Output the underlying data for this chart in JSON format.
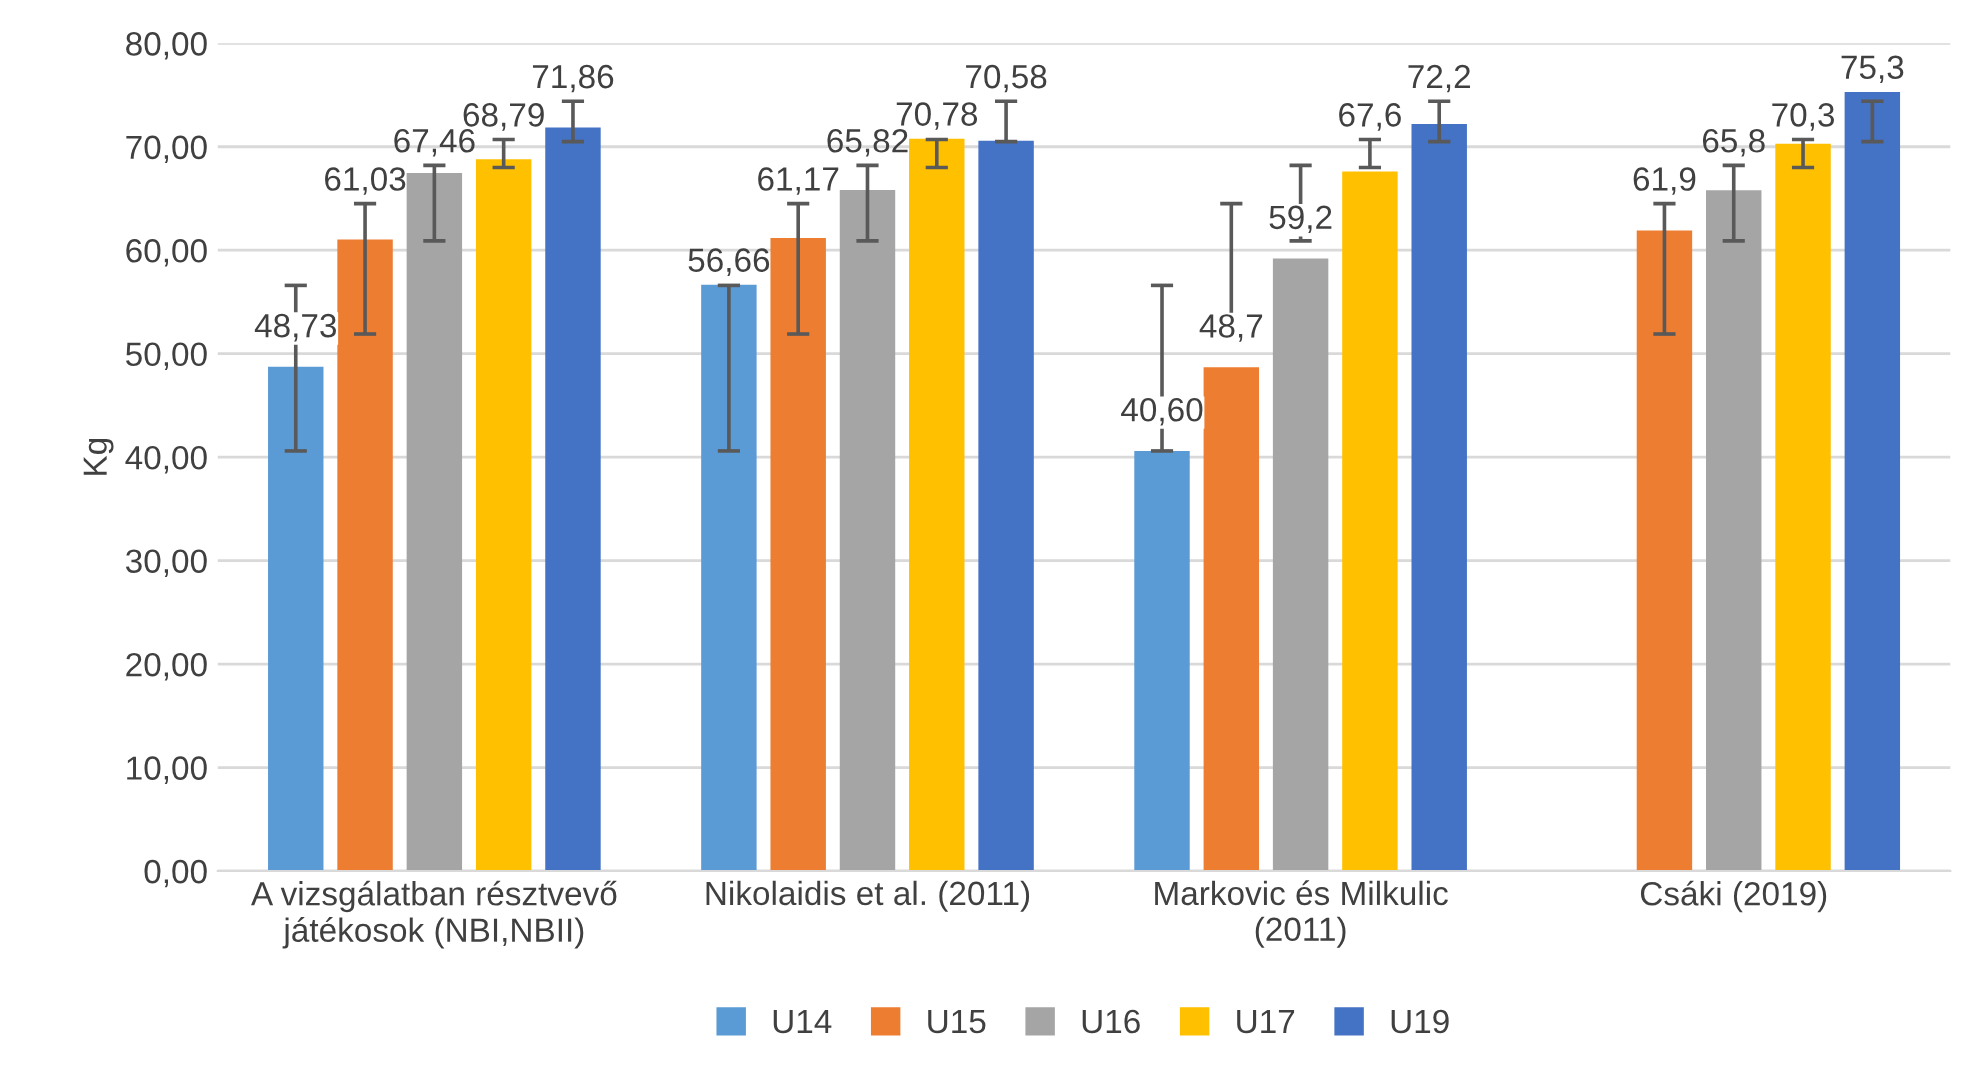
{
  "chart_data": {
    "type": "bar",
    "ylabel": "Kg",
    "categories": [
      "A vizsgálatban résztvevő\njátékosok (NBI,NBII)",
      "Nikolaidis et al. (2011)",
      "Markovic és Milkulic\n(2011)",
      "Csáki (2019)"
    ],
    "series": [
      {
        "name": "U14",
        "color": "#5b9bd5",
        "values": [
          48.73,
          56.66,
          40.6,
          null
        ],
        "value_labels": [
          "48,73",
          "56,66",
          "40,60",
          null
        ],
        "errors": [
          [
            40.6,
            56.6
          ],
          [
            40.6,
            56.6
          ],
          [
            40.6,
            56.6
          ],
          null
        ]
      },
      {
        "name": "U15",
        "color": "#ed7d31",
        "values": [
          61.03,
          61.17,
          48.7,
          61.9
        ],
        "value_labels": [
          "61,03",
          "61,17",
          "48,7",
          "61,9"
        ],
        "errors": [
          [
            51.9,
            64.5
          ],
          [
            51.9,
            64.5
          ],
          [
            51.9,
            64.5
          ],
          [
            51.9,
            64.5
          ]
        ]
      },
      {
        "name": "U16",
        "color": "#a5a5a5",
        "values": [
          67.46,
          65.82,
          59.2,
          65.8
        ],
        "value_labels": [
          "67,46",
          "65,82",
          "59,2",
          "65,8"
        ],
        "errors": [
          [
            60.9,
            68.2
          ],
          [
            60.9,
            68.2
          ],
          [
            60.9,
            68.2
          ],
          [
            60.9,
            68.2
          ]
        ]
      },
      {
        "name": "U17",
        "color": "#ffc000",
        "values": [
          68.79,
          70.78,
          67.6,
          70.3
        ],
        "value_labels": [
          "68,79",
          "70,78",
          "67,6",
          "70,3"
        ],
        "errors": [
          [
            68.0,
            70.7
          ],
          [
            68.0,
            70.7
          ],
          [
            68.0,
            70.7
          ],
          [
            68.0,
            70.7
          ]
        ]
      },
      {
        "name": "U19",
        "color": "#4472c4",
        "values": [
          71.86,
          70.58,
          72.2,
          75.3
        ],
        "value_labels": [
          "71,86",
          "70,58",
          "72,2",
          "75,3"
        ],
        "errors": [
          [
            70.5,
            74.4
          ],
          [
            70.5,
            74.4
          ],
          [
            70.5,
            74.4
          ],
          [
            70.5,
            74.4
          ]
        ]
      }
    ],
    "ylim": [
      0,
      80
    ],
    "yticks": [
      {
        "value": 0,
        "label": "0,00"
      },
      {
        "value": 10,
        "label": "10,00"
      },
      {
        "value": 20,
        "label": "20,00"
      },
      {
        "value": 30,
        "label": "30,00"
      },
      {
        "value": 40,
        "label": "40,00"
      },
      {
        "value": 50,
        "label": "50,00"
      },
      {
        "value": 60,
        "label": "60,00"
      },
      {
        "value": 70,
        "label": "70,00"
      },
      {
        "value": 80,
        "label": "80,00"
      }
    ],
    "grid": "y",
    "legend": "bottom"
  }
}
